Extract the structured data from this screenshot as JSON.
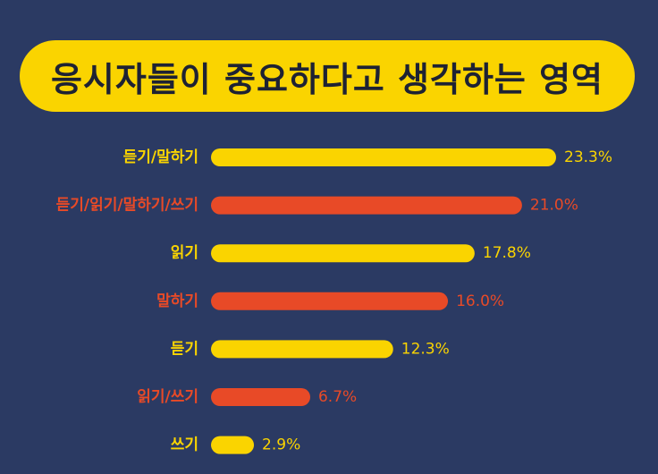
{
  "title": "응시자들이 중요하다고 생각하는 영역",
  "colors": {
    "background": "#2B3A63",
    "accent_yellow": "#FAD400",
    "accent_red": "#E84A27",
    "title_text": "#1E2233"
  },
  "chart_data": {
    "type": "bar",
    "orientation": "horizontal",
    "categories": [
      "듣기/말하기",
      "듣기/읽기/말하기/쓰기",
      "읽기",
      "말하기",
      "듣기",
      "읽기/쓰기",
      "쓰기"
    ],
    "values": [
      23.3,
      21.0,
      17.8,
      16.0,
      12.3,
      6.7,
      2.9
    ],
    "value_labels": [
      "23.3%",
      "21.0%",
      "17.8%",
      "16.0%",
      "12.3%",
      "6.7%",
      "2.9%"
    ],
    "bar_colors": [
      "#FAD400",
      "#E84A27",
      "#FAD400",
      "#E84A27",
      "#FAD400",
      "#E84A27",
      "#FAD400"
    ],
    "label_colors": [
      "#FAD400",
      "#E84A27",
      "#FAD400",
      "#E84A27",
      "#FAD400",
      "#E84A27",
      "#FAD400"
    ],
    "unit": "%",
    "xlim": [
      0,
      23.3
    ],
    "grid": false,
    "legend": "none"
  }
}
